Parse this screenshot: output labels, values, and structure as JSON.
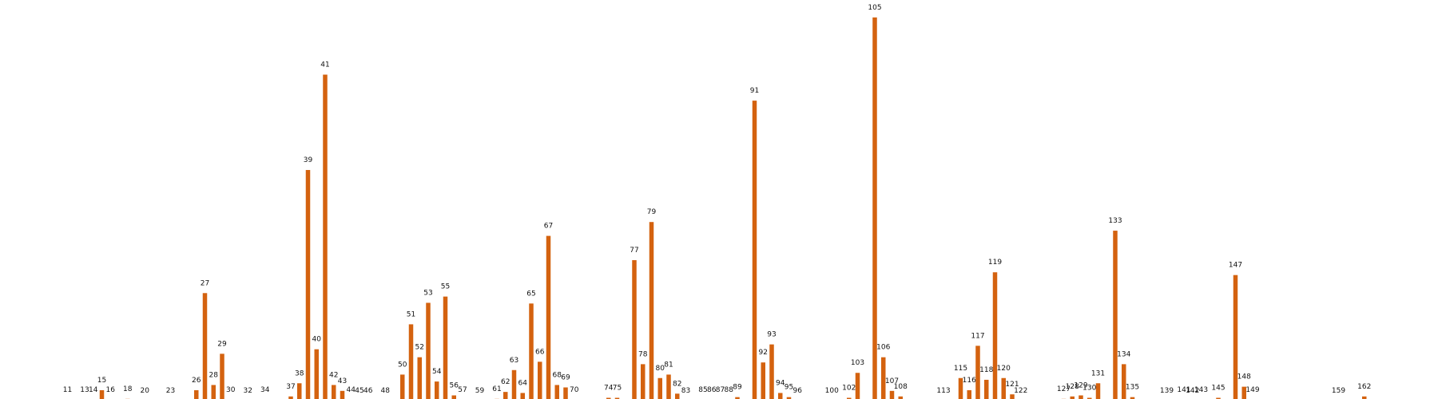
{
  "chart_data": {
    "type": "bar",
    "title": "",
    "xlabel": "",
    "ylabel": "",
    "ylim": [
      0,
      110
    ],
    "grid": false,
    "bar_color": "#d4620f",
    "x": [
      11,
      13,
      14,
      15,
      16,
      18,
      20,
      23,
      26,
      27,
      28,
      29,
      30,
      32,
      34,
      37,
      38,
      39,
      40,
      41,
      42,
      43,
      44,
      45,
      46,
      48,
      50,
      51,
      52,
      53,
      54,
      55,
      56,
      57,
      59,
      61,
      62,
      63,
      64,
      65,
      66,
      67,
      68,
      69,
      70,
      74,
      75,
      77,
      78,
      79,
      80,
      81,
      82,
      83,
      85,
      86,
      87,
      88,
      89,
      91,
      92,
      93,
      94,
      95,
      96,
      100,
      102,
      103,
      105,
      106,
      107,
      108,
      113,
      115,
      116,
      117,
      118,
      119,
      120,
      121,
      122,
      127,
      128,
      129,
      130,
      131,
      133,
      134,
      135,
      139,
      141,
      142,
      143,
      145,
      147,
      148,
      149,
      159,
      162
    ],
    "values": [
      0.2,
      0.2,
      0.2,
      3.0,
      0.2,
      0.5,
      0.0,
      0.0,
      3.0,
      31.0,
      4.5,
      13.5,
      0.2,
      0.0,
      0.2,
      1.2,
      5.0,
      66.5,
      14.8,
      94.0,
      4.5,
      2.8,
      0.2,
      0.0,
      0.0,
      0.0,
      7.5,
      22.0,
      12.5,
      28.2,
      5.5,
      30.0,
      1.5,
      0.2,
      0.0,
      0.5,
      2.5,
      8.8,
      2.2,
      28.0,
      11.2,
      47.5,
      4.5,
      3.8,
      0.2,
      0.8,
      0.8,
      40.5,
      10.5,
      51.5,
      6.5,
      7.5,
      2.0,
      0.0,
      0.2,
      0.2,
      0.2,
      0.2,
      1.0,
      86.5,
      11.0,
      16.2,
      2.2,
      1.0,
      0.0,
      0.0,
      0.8,
      8.0,
      110.5,
      12.5,
      2.8,
      1.2,
      0.0,
      6.5,
      3.0,
      15.8,
      6.0,
      37.0,
      6.5,
      1.8,
      0.0,
      0.5,
      1.2,
      1.5,
      0.8,
      5.0,
      49.0,
      10.5,
      1.0,
      0.0,
      0.2,
      0.0,
      0.2,
      0.8,
      36.2,
      4.0,
      0.2,
      0.0,
      1.2
    ]
  }
}
